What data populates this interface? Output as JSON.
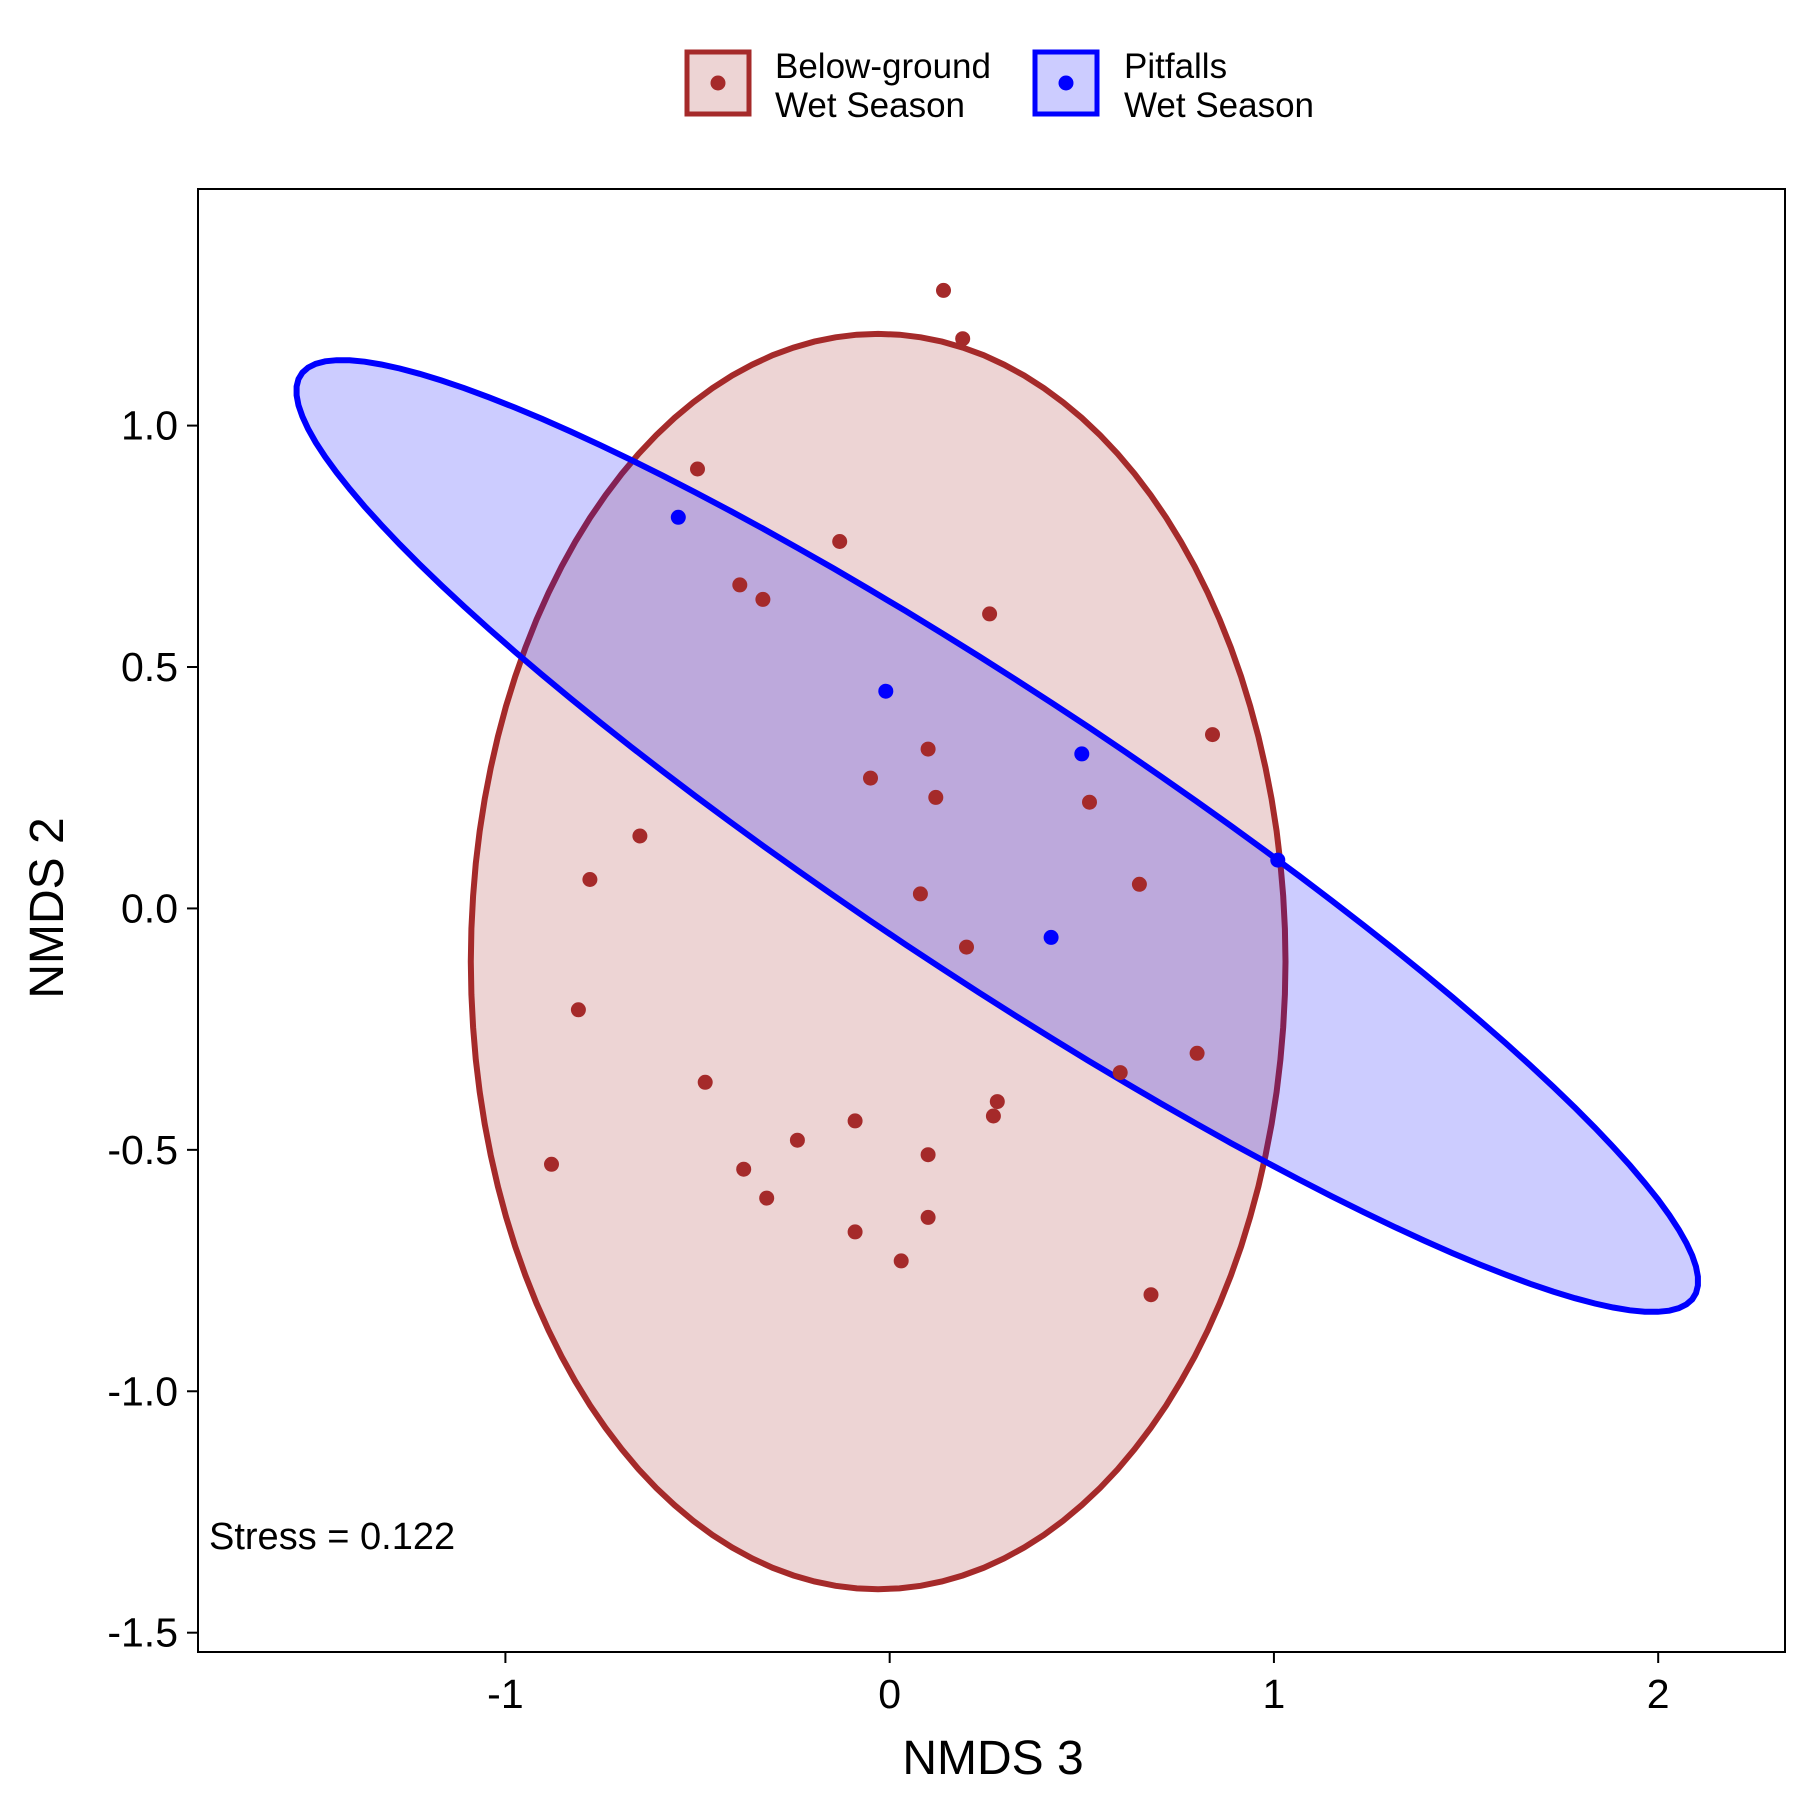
{
  "chart_data": {
    "type": "scatter",
    "xlabel": "NMDS 3",
    "ylabel": "NMDS 2",
    "xlim": [
      -1.8,
      2.33
    ],
    "ylim": [
      -1.54,
      1.49
    ],
    "x_ticks": [
      -1,
      0,
      1,
      2
    ],
    "x_tick_labels": [
      "-1",
      "0",
      "1",
      "2"
    ],
    "y_ticks": [
      1.0,
      0.5,
      0.0,
      -0.5,
      -1.0,
      -1.5
    ],
    "y_tick_labels": [
      "1.0",
      "0.5",
      "0.0",
      "-0.5",
      "-1.0",
      "-1.5"
    ],
    "grid": false,
    "legend_position": "top",
    "annotation": "Stress = 0.122",
    "series": [
      {
        "name": "Below-ground\nWet Season",
        "name_lines": [
          "Below-ground",
          "Wet Season"
        ],
        "color": "#A52A2A",
        "fill": "rgba(165,42,42,0.2)",
        "ellipse": {
          "cx": -0.03,
          "cy": -0.11,
          "rx": 1.06,
          "ry": 1.3,
          "angle_deg": 0
        },
        "points": [
          {
            "x": 0.14,
            "y": 1.28
          },
          {
            "x": 0.19,
            "y": 1.18
          },
          {
            "x": -0.5,
            "y": 0.91
          },
          {
            "x": -0.13,
            "y": 0.76
          },
          {
            "x": -0.39,
            "y": 0.67
          },
          {
            "x": -0.33,
            "y": 0.64
          },
          {
            "x": 0.26,
            "y": 0.61
          },
          {
            "x": 0.84,
            "y": 0.36
          },
          {
            "x": 0.1,
            "y": 0.33
          },
          {
            "x": -0.05,
            "y": 0.27
          },
          {
            "x": 0.12,
            "y": 0.23
          },
          {
            "x": 0.52,
            "y": 0.22
          },
          {
            "x": -0.65,
            "y": 0.15
          },
          {
            "x": -0.78,
            "y": 0.06
          },
          {
            "x": 0.65,
            "y": 0.05
          },
          {
            "x": 0.08,
            "y": 0.03
          },
          {
            "x": 0.2,
            "y": -0.08
          },
          {
            "x": -0.81,
            "y": -0.21
          },
          {
            "x": 0.8,
            "y": -0.3
          },
          {
            "x": 0.6,
            "y": -0.34
          },
          {
            "x": -0.48,
            "y": -0.36
          },
          {
            "x": 0.28,
            "y": -0.4
          },
          {
            "x": 0.27,
            "y": -0.43
          },
          {
            "x": -0.09,
            "y": -0.44
          },
          {
            "x": -0.24,
            "y": -0.48
          },
          {
            "x": 0.1,
            "y": -0.51
          },
          {
            "x": -0.88,
            "y": -0.53
          },
          {
            "x": -0.38,
            "y": -0.54
          },
          {
            "x": -0.32,
            "y": -0.6
          },
          {
            "x": 0.1,
            "y": -0.64
          },
          {
            "x": -0.09,
            "y": -0.67
          },
          {
            "x": 0.03,
            "y": -0.73
          },
          {
            "x": 0.68,
            "y": -0.8
          }
        ]
      },
      {
        "name": "Pitfalls\nWet Season",
        "name_lines": [
          "Pitfalls",
          "Wet Season"
        ],
        "color": "#0000FF",
        "fill": "rgba(0,0,255,0.2)",
        "ellipse": {
          "cx": 0.28,
          "cy": 0.15,
          "rx": 2.05,
          "ry": 0.31,
          "angle_deg": -27.5
        },
        "points": [
          {
            "x": -0.55,
            "y": 0.81
          },
          {
            "x": -0.01,
            "y": 0.45
          },
          {
            "x": 0.5,
            "y": 0.32
          },
          {
            "x": 1.01,
            "y": 0.1
          },
          {
            "x": 0.42,
            "y": -0.06
          }
        ]
      }
    ]
  }
}
